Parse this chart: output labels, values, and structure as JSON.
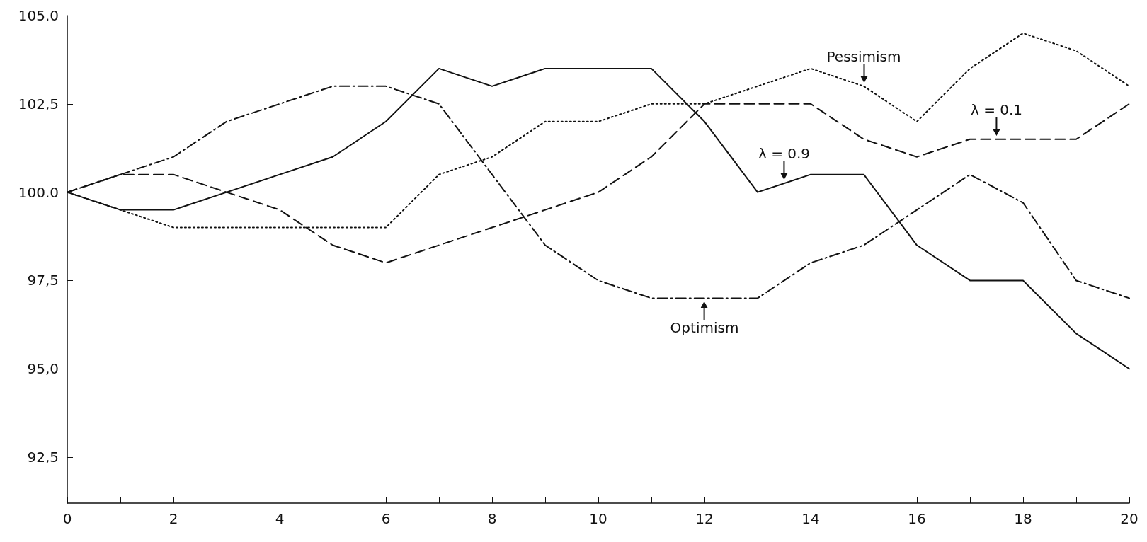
{
  "chart_data": {
    "type": "line",
    "x": [
      0,
      1,
      2,
      3,
      4,
      5,
      6,
      7,
      8,
      9,
      10,
      11,
      12,
      13,
      14,
      15,
      16,
      17,
      18,
      19,
      20
    ],
    "series": [
      {
        "color": "#111111",
        "line_style": "solid",
        "values": [
          100,
          99.5,
          99.5,
          100,
          100.5,
          101,
          102,
          103.5,
          103,
          103.5,
          103.5,
          103.5,
          102,
          100,
          100.5,
          100.5,
          98.5,
          97.5,
          97.5,
          96,
          95
        ]
      },
      {
        "color": "#111111",
        "line_style": "dashed",
        "values": [
          100,
          100.5,
          100.5,
          100,
          99.5,
          98.5,
          98,
          98.5,
          99,
          99.5,
          100,
          101,
          102.5,
          102.5,
          102.5,
          101.5,
          101,
          101.5,
          101.5,
          101.5,
          102.5
        ]
      },
      {
        "color": "#111111",
        "line_style": "dashdot",
        "values": [
          100,
          100.5,
          101,
          102,
          102.5,
          103,
          103,
          102.5,
          100.5,
          98.5,
          97.5,
          97,
          97,
          97,
          98,
          98.5,
          99.5,
          100.5,
          99.7,
          97.5,
          97
        ]
      },
      {
        "color": "#111111",
        "line_style": "dotted",
        "values": [
          100,
          99.5,
          99,
          99,
          99,
          99,
          99,
          100.5,
          101,
          102,
          102,
          102.5,
          102.5,
          103,
          103.5,
          103,
          102,
          103.5,
          104.5,
          104,
          103
        ]
      }
    ],
    "annotations": [
      {
        "text": "Pessimism",
        "x": 15,
        "y": 103.1
      },
      {
        "text": "λ = 0.1",
        "x": 17.5,
        "y": 101.6
      },
      {
        "text": "λ = 0.9",
        "x": 13.5,
        "y": 100.35
      },
      {
        "text": "Optimism",
        "x": 12,
        "y": 96.9
      }
    ],
    "xlim": [
      0,
      20
    ],
    "xticks": [
      0,
      {
        "value": 1,
        "label": null
      },
      2,
      {
        "value": 3,
        "label": null
      },
      4,
      {
        "value": 5,
        "label": null
      },
      6,
      {
        "value": 7,
        "label": null
      },
      8,
      {
        "value": 9,
        "label": null
      },
      10,
      {
        "value": 11,
        "label": null
      },
      12,
      {
        "value": 13,
        "label": null
      },
      14,
      {
        "value": 15,
        "label": null
      },
      16,
      {
        "value": 17,
        "label": null
      },
      18,
      {
        "value": 19,
        "label": null
      },
      20
    ],
    "ylim": [
      91.2,
      105
    ],
    "yticks": [
      {
        "value": 92.5,
        "label": "92,5"
      },
      {
        "value": 95,
        "label": "95,0"
      },
      {
        "value": 97.5,
        "label": "97,5"
      },
      {
        "value": 100,
        "label": "100.0"
      },
      {
        "value": 102.5,
        "label": "102,5"
      },
      {
        "value": 105,
        "label": "105.0"
      }
    ],
    "grid": false,
    "marker": "none"
  }
}
